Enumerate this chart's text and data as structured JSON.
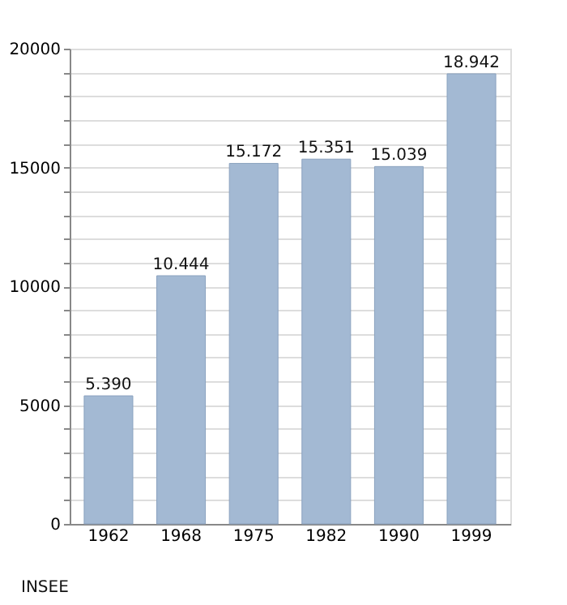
{
  "chart_data": {
    "type": "bar",
    "categories": [
      "1962",
      "1968",
      "1975",
      "1982",
      "1990",
      "1999"
    ],
    "values": [
      5390,
      10444,
      15172,
      15351,
      15039,
      18942
    ],
    "value_labels": [
      "5.390",
      "10.444",
      "15.172",
      "15.351",
      "15.039",
      "18.942"
    ],
    "color": "#a3b9d3",
    "ylim": [
      0,
      20000
    ],
    "yticks": [
      0,
      {
        "value": 1000,
        "label": null
      },
      {
        "value": 2000,
        "label": null
      },
      {
        "value": 3000,
        "label": null
      },
      {
        "value": 4000,
        "label": null
      },
      5000,
      {
        "value": 6000,
        "label": null
      },
      {
        "value": 7000,
        "label": null
      },
      {
        "value": 8000,
        "label": null
      },
      {
        "value": 9000,
        "label": null
      },
      10000,
      {
        "value": 11000,
        "label": null
      },
      {
        "value": 12000,
        "label": null
      },
      {
        "value": 13000,
        "label": null
      },
      {
        "value": 14000,
        "label": null
      },
      15000,
      {
        "value": 16000,
        "label": null
      },
      {
        "value": 17000,
        "label": null
      },
      {
        "value": 18000,
        "label": null
      },
      {
        "value": 19000,
        "label": null
      },
      20000
    ],
    "grid": "y",
    "annotations": [
      "INSEE"
    ]
  }
}
